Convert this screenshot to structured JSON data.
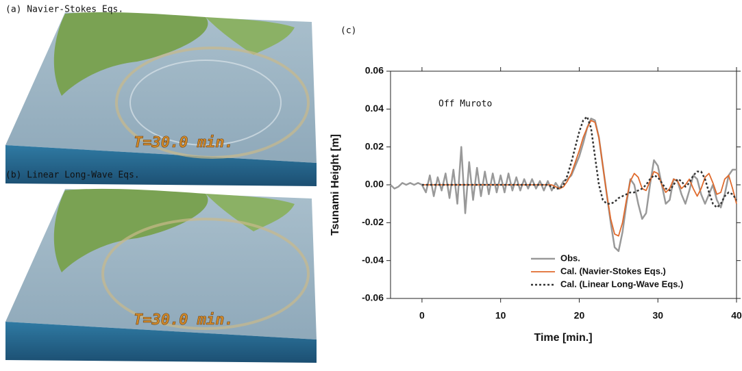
{
  "panels": [
    {
      "label": "(a) Navier-Stokes Eqs.",
      "time": "T=30.0 min."
    },
    {
      "label": "(b) Linear Long-Wave Eqs.",
      "time": "T=30.0 min."
    }
  ],
  "chart_data": {
    "type": "line",
    "panel_label": "(c)",
    "annotation": "Off Muroto",
    "x_label": "Time [min.]",
    "y_label": "Tsunami Height [m]",
    "x": [
      -4,
      -3.5,
      -3,
      -2.5,
      -2,
      -1.5,
      -1,
      -0.5,
      0,
      0.5,
      1,
      1.5,
      2,
      2.5,
      3,
      3.5,
      4,
      4.5,
      5,
      5.5,
      6,
      6.5,
      7,
      7.5,
      8,
      8.5,
      9,
      9.5,
      10,
      10.5,
      11,
      11.5,
      12,
      12.5,
      13,
      13.5,
      14,
      14.5,
      15,
      15.5,
      16,
      16.5,
      17,
      17.5,
      18,
      18.5,
      19,
      19.5,
      20,
      20.5,
      21,
      21.5,
      22,
      22.5,
      23,
      23.5,
      24,
      24.5,
      25,
      25.5,
      26,
      26.5,
      27,
      27.5,
      28,
      28.5,
      29,
      29.5,
      30,
      30.5,
      31,
      31.5,
      32,
      32.5,
      33,
      33.5,
      34,
      34.5,
      35,
      35.5,
      36,
      36.5,
      37,
      37.5,
      38,
      38.5,
      39,
      39.5,
      40
    ],
    "series": [
      {
        "name": "Obs.",
        "color": "#999999",
        "width": 2.5,
        "dash": false,
        "values": [
          0,
          -0.002,
          -0.001,
          0.001,
          0,
          0.001,
          0,
          0.001,
          0,
          -0.004,
          0.005,
          -0.006,
          0.004,
          -0.003,
          0.006,
          -0.007,
          0.008,
          -0.01,
          0.02,
          -0.015,
          0.012,
          -0.008,
          0.009,
          -0.006,
          0.007,
          -0.005,
          0.006,
          -0.004,
          0.005,
          -0.004,
          0.006,
          -0.003,
          0.004,
          -0.003,
          0.003,
          -0.002,
          0.003,
          -0.002,
          0.002,
          -0.003,
          0.002,
          -0.003,
          0.001,
          -0.002,
          0.002,
          0.003,
          0.005,
          0.01,
          0.015,
          0.022,
          0.03,
          0.035,
          0.034,
          0.025,
          0.01,
          -0.005,
          -0.02,
          -0.033,
          -0.035,
          -0.025,
          -0.01,
          0.003,
          0,
          -0.01,
          -0.018,
          -0.015,
          0,
          0.013,
          0.01,
          0,
          -0.01,
          -0.008,
          0.003,
          0.002,
          -0.005,
          -0.01,
          -0.003,
          0.005,
          0.003,
          -0.005,
          -0.01,
          -0.005,
          0,
          -0.008,
          -0.012,
          -0.005,
          0.005,
          0.008,
          0.008
        ]
      },
      {
        "name": "Cal. (Navier-Stokes Eqs.)",
        "color": "#e06a2c",
        "width": 1.8,
        "dash": false,
        "values": [
          null,
          null,
          null,
          null,
          null,
          null,
          null,
          null,
          0,
          0,
          0,
          0,
          0,
          0,
          0,
          0,
          0,
          0,
          0,
          0,
          0,
          0,
          0,
          0,
          0,
          0,
          0,
          0,
          0,
          0,
          0,
          0,
          0,
          0,
          0,
          0,
          0,
          0,
          0,
          0,
          0,
          0,
          -0.001,
          -0.002,
          -0.001,
          0.002,
          0.006,
          0.012,
          0.018,
          0.025,
          0.03,
          0.034,
          0.033,
          0.025,
          0.01,
          -0.005,
          -0.018,
          -0.026,
          -0.027,
          -0.02,
          -0.008,
          0.002,
          0.006,
          0.004,
          -0.002,
          -0.003,
          0.002,
          0.007,
          0.006,
          0,
          -0.004,
          -0.002,
          0.003,
          0.002,
          -0.002,
          0,
          0.003,
          -0.002,
          -0.006,
          -0.002,
          0.004,
          0.006,
          0.001,
          -0.005,
          -0.004,
          0.003,
          0.005,
          -0.002,
          -0.01
        ]
      },
      {
        "name": "Cal. (Linear Long-Wave Eqs.)",
        "color": "#333333",
        "width": 2.5,
        "dash": true,
        "values": [
          null,
          null,
          null,
          null,
          null,
          null,
          null,
          null,
          0,
          0,
          0,
          0,
          0,
          0,
          0,
          0,
          0,
          0,
          0,
          0,
          0,
          0,
          0,
          0,
          0,
          0,
          0,
          0,
          0,
          0,
          0,
          0,
          0,
          0,
          0,
          0,
          0,
          0,
          0,
          0,
          0,
          -0.001,
          -0.002,
          -0.002,
          0,
          0.005,
          0.012,
          0.02,
          0.028,
          0.034,
          0.036,
          0.03,
          0.015,
          0,
          -0.008,
          -0.01,
          -0.01,
          -0.009,
          -0.007,
          -0.006,
          -0.005,
          -0.004,
          -0.004,
          -0.003,
          -0.002,
          0,
          0.003,
          0.005,
          0.004,
          0.001,
          -0.002,
          -0.003,
          0,
          0.003,
          0.002,
          -0.001,
          0.001,
          0.005,
          0.007,
          0.007,
          0.003,
          -0.004,
          -0.01,
          -0.012,
          -0.01,
          -0.006,
          -0.004,
          -0.005,
          -0.008
        ]
      }
    ],
    "xlim": [
      -4,
      40
    ],
    "xticks": [
      0,
      10,
      20,
      30,
      40
    ],
    "ylim": [
      -0.06,
      0.06
    ],
    "yticks": [
      -0.06,
      -0.04,
      -0.02,
      {
        "value": 0,
        "label": "0.00"
      },
      0.02,
      0.04,
      0.06
    ],
    "legend": "lower right"
  }
}
